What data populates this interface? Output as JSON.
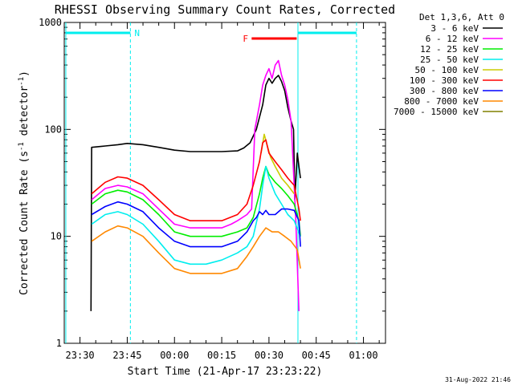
{
  "chart_data": {
    "type": "line",
    "title": "RHESSI Observing Summary Count Rates, Corrected",
    "xlabel": "Start Time (21-Apr-17 23:23:22)",
    "ylabel_main": "Corrected Count Rate (s",
    "ylabel_sup1": "-1",
    "ylabel_mid": " detector",
    "ylabel_sup2": "-1",
    "ylabel_end": ")",
    "y_scale": "log",
    "ylim": [
      1,
      1000
    ],
    "xlim_minutes": [
      -35,
      67
    ],
    "x_ticks": [
      {
        "label": "23:30",
        "minutes": -30
      },
      {
        "label": "23:45",
        "minutes": -15
      },
      {
        "label": "00:00",
        "minutes": 0
      },
      {
        "label": "00:15",
        "minutes": 15
      },
      {
        "label": "00:30",
        "minutes": 30
      },
      {
        "label": "00:45",
        "minutes": 45
      },
      {
        "label": "01:00",
        "minutes": 60
      }
    ],
    "y_ticks": [
      {
        "label": "1",
        "value": 1
      },
      {
        "label": "10",
        "value": 10
      },
      {
        "label": "100",
        "value": 100
      },
      {
        "label": "1000",
        "value": 1000
      }
    ],
    "legend_title": "Det 1,3,6, Att 0",
    "legend_placement": "right",
    "series": [
      {
        "name": "3 - 6 keV",
        "color": "#000000",
        "points": [
          [
            -26.5,
            2
          ],
          [
            -26.3,
            68
          ],
          [
            -22,
            70
          ],
          [
            -18,
            72
          ],
          [
            -15,
            74
          ],
          [
            -10,
            72
          ],
          [
            -5,
            68
          ],
          [
            0,
            64
          ],
          [
            5,
            62
          ],
          [
            10,
            62
          ],
          [
            15,
            62
          ],
          [
            20,
            63
          ],
          [
            22,
            67
          ],
          [
            24,
            75
          ],
          [
            26,
            100
          ],
          [
            28,
            170
          ],
          [
            29,
            260
          ],
          [
            30,
            300
          ],
          [
            31,
            270
          ],
          [
            32,
            300
          ],
          [
            33,
            320
          ],
          [
            34,
            280
          ],
          [
            35,
            230
          ],
          [
            36,
            160
          ],
          [
            37,
            120
          ],
          [
            37.8,
            100
          ],
          [
            38.2,
            22
          ],
          [
            39,
            60
          ],
          [
            39.5,
            45
          ],
          [
            40,
            35
          ]
        ]
      },
      {
        "name": "6 - 12 keV",
        "color": "#ff00ff",
        "points": [
          [
            -26.3,
            22
          ],
          [
            -22,
            28
          ],
          [
            -18,
            30
          ],
          [
            -15,
            29
          ],
          [
            -10,
            25
          ],
          [
            -5,
            18
          ],
          [
            0,
            13
          ],
          [
            5,
            12
          ],
          [
            10,
            12
          ],
          [
            15,
            12
          ],
          [
            18,
            13
          ],
          [
            20,
            14
          ],
          [
            23,
            16
          ],
          [
            24.5,
            18
          ],
          [
            25.5,
            100
          ],
          [
            27,
            170
          ],
          [
            28,
            260
          ],
          [
            29,
            320
          ],
          [
            30,
            370
          ],
          [
            31,
            300
          ],
          [
            32,
            400
          ],
          [
            33,
            440
          ],
          [
            34,
            320
          ],
          [
            35,
            260
          ],
          [
            36,
            190
          ],
          [
            37,
            120
          ],
          [
            37.8,
            40
          ],
          [
            38.5,
            15
          ],
          [
            39.5,
            2
          ]
        ]
      },
      {
        "name": "12 - 25 keV",
        "color": "#00ee00",
        "points": [
          [
            -26.3,
            20
          ],
          [
            -22,
            25
          ],
          [
            -18,
            27
          ],
          [
            -15,
            26
          ],
          [
            -10,
            22
          ],
          [
            -5,
            16
          ],
          [
            0,
            11
          ],
          [
            5,
            10
          ],
          [
            10,
            10
          ],
          [
            15,
            10
          ],
          [
            20,
            11
          ],
          [
            23,
            12
          ],
          [
            25,
            15
          ],
          [
            27,
            25
          ],
          [
            28,
            35
          ],
          [
            29,
            45
          ],
          [
            30,
            38
          ],
          [
            32,
            32
          ],
          [
            34,
            28
          ],
          [
            36,
            24
          ],
          [
            38,
            20
          ],
          [
            39.5,
            14
          ],
          [
            40,
            10
          ]
        ]
      },
      {
        "name": "25 - 50 keV",
        "color": "#00eeee",
        "points": [
          [
            -26.3,
            13
          ],
          [
            -22,
            16
          ],
          [
            -18,
            17
          ],
          [
            -15,
            16
          ],
          [
            -10,
            13
          ],
          [
            -5,
            9
          ],
          [
            0,
            6
          ],
          [
            5,
            5.5
          ],
          [
            10,
            5.5
          ],
          [
            15,
            6
          ],
          [
            20,
            7
          ],
          [
            23,
            8
          ],
          [
            25,
            10
          ],
          [
            27,
            18
          ],
          [
            28,
            30
          ],
          [
            29,
            45
          ],
          [
            30,
            35
          ],
          [
            32,
            25
          ],
          [
            34,
            20
          ],
          [
            36,
            16
          ],
          [
            38,
            14
          ],
          [
            40,
            10
          ]
        ]
      },
      {
        "name": "50 - 100 keV",
        "color": "#cccc00",
        "points": [
          [
            27.5,
            60
          ],
          [
            28.5,
            90
          ],
          [
            29.5,
            70
          ],
          [
            30.5,
            55
          ],
          [
            32,
            45
          ],
          [
            34,
            35
          ],
          [
            36,
            30
          ],
          [
            38,
            25
          ]
        ]
      },
      {
        "name": "100 - 300 keV",
        "color": "#ff0000",
        "points": [
          [
            -26.3,
            25
          ],
          [
            -22,
            32
          ],
          [
            -18,
            36
          ],
          [
            -15,
            35
          ],
          [
            -10,
            30
          ],
          [
            -5,
            22
          ],
          [
            0,
            16
          ],
          [
            5,
            14
          ],
          [
            10,
            14
          ],
          [
            15,
            14
          ],
          [
            20,
            16
          ],
          [
            23,
            20
          ],
          [
            25,
            30
          ],
          [
            27,
            50
          ],
          [
            28,
            75
          ],
          [
            29,
            80
          ],
          [
            30,
            60
          ],
          [
            32,
            50
          ],
          [
            34,
            42
          ],
          [
            36,
            35
          ],
          [
            38,
            30
          ],
          [
            39.5,
            18
          ],
          [
            40,
            14
          ]
        ]
      },
      {
        "name": "300 - 800 keV",
        "color": "#0000ff",
        "points": [
          [
            -26.3,
            16
          ],
          [
            -22,
            19
          ],
          [
            -18,
            21
          ],
          [
            -15,
            20
          ],
          [
            -10,
            17
          ],
          [
            -5,
            12
          ],
          [
            0,
            9
          ],
          [
            5,
            8
          ],
          [
            10,
            8
          ],
          [
            15,
            8
          ],
          [
            20,
            9
          ],
          [
            23,
            11
          ],
          [
            25,
            14
          ],
          [
            26,
            15
          ],
          [
            27,
            17
          ],
          [
            28,
            16
          ],
          [
            29,
            17.5
          ],
          [
            30,
            16
          ],
          [
            32,
            16
          ],
          [
            34,
            18
          ],
          [
            36,
            18
          ],
          [
            38,
            17.5
          ],
          [
            39.5,
            14
          ],
          [
            40,
            8
          ]
        ]
      },
      {
        "name": "800 - 7000 keV",
        "color": "#ff8800",
        "points": [
          [
            -26.3,
            9
          ],
          [
            -22,
            11
          ],
          [
            -18,
            12.5
          ],
          [
            -15,
            12
          ],
          [
            -10,
            10
          ],
          [
            -5,
            7
          ],
          [
            0,
            5
          ],
          [
            5,
            4.5
          ],
          [
            10,
            4.5
          ],
          [
            15,
            4.5
          ],
          [
            20,
            5
          ],
          [
            23,
            6.5
          ],
          [
            25,
            8
          ],
          [
            27,
            10
          ],
          [
            29,
            12
          ],
          [
            31,
            11
          ],
          [
            33,
            11
          ],
          [
            35,
            10
          ],
          [
            37,
            9
          ],
          [
            39,
            7.5
          ],
          [
            40,
            5
          ]
        ]
      },
      {
        "name": "7000 - 15000 keV",
        "color": "#808000",
        "points": []
      }
    ],
    "annotations": [
      {
        "text": "N",
        "color": "#00eeee"
      },
      {
        "text": "F",
        "color": "#ff0000"
      }
    ]
  },
  "colors": {
    "night_band": "#00eeee",
    "flare_bar": "#ff0000"
  },
  "footer_timestamp": "31-Aug-2022 21:46"
}
